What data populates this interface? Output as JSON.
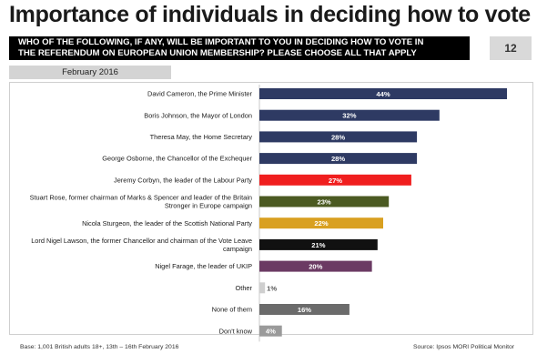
{
  "header": {
    "title": "Importance of individuals in deciding how to vote",
    "question_line1": "WHO OF THE FOLLOWING, IF ANY, WILL BE IMPORTANT TO YOU IN DECIDING HOW TO VOTE IN",
    "question_line2": "THE REFERENDUM ON EUROPEAN UNION MEMBERSHIP?  PLEASE CHOOSE ALL THAT APPLY",
    "page_number": "12",
    "period": "February 2016"
  },
  "footer": {
    "base": "Base: 1,001 British adults 18+, 13th – 16th  February 2016",
    "source": "Source: Ipsos MORI Political Monitor"
  },
  "chart_data": {
    "type": "bar",
    "orientation": "horizontal",
    "value_format": "percent",
    "xlim": [
      0,
      44
    ],
    "grid": false,
    "categories": [
      [
        "David Cameron, the Prime Minister"
      ],
      [
        "Boris Johnson, the Mayor of London"
      ],
      [
        "Theresa May, the Home Secretary"
      ],
      [
        "George Osborne, the Chancellor of the Exchequer"
      ],
      [
        "Jeremy Corbyn, the leader of the Labour Party"
      ],
      [
        "Stuart Rose, former chairman of Marks & Spencer and leader of the Britain",
        "Stronger in Europe campaign"
      ],
      [
        "Nicola Sturgeon, the leader of the Scottish National Party"
      ],
      [
        "Lord Nigel Lawson, the former Chancellor and chairman of the Vote Leave",
        "campaign"
      ],
      [
        "Nigel Farage, the leader of UKIP"
      ],
      [
        "Other"
      ],
      [
        "None of them"
      ],
      [
        "Don't know"
      ]
    ],
    "values": [
      44,
      32,
      28,
      28,
      27,
      23,
      22,
      21,
      20,
      1,
      16,
      4
    ],
    "value_labels": [
      "44%",
      "32%",
      "28%",
      "28%",
      "27%",
      "23%",
      "22%",
      "21%",
      "20%",
      "1%",
      "16%",
      "4%"
    ],
    "colors": [
      "#2e3a63",
      "#2e3a63",
      "#2e3a63",
      "#2e3a63",
      "#f01e1e",
      "#4b5a22",
      "#d9a020",
      "#111111",
      "#6b3a63",
      "#cfcfcf",
      "#6b6b6b",
      "#9a9a9a"
    ]
  }
}
